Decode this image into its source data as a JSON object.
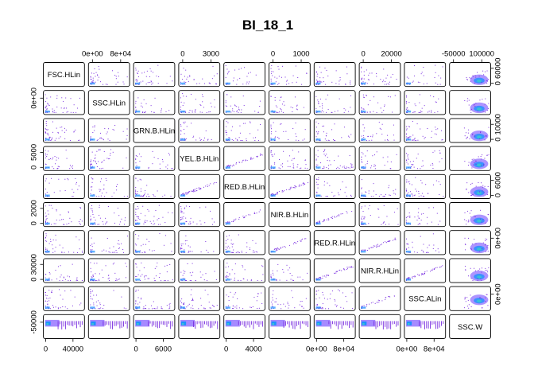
{
  "chart_data": {
    "type": "scatter",
    "subtype": "scatterplot-matrix",
    "title": "BI_18_1",
    "variables": [
      "FSC.HLin",
      "SSC.HLin",
      "GRN.B.HLin",
      "YEL.B.HLin",
      "RED.B.HLin",
      "NIR.B.HLin",
      "RED.R.HLin",
      "NIR.R.HLin",
      "SSC.ALin",
      "SSC.W"
    ],
    "top_axis": [
      {
        "column": 2,
        "ticks": [
          "0e+00",
          "8e+04"
        ]
      },
      {
        "column": 4,
        "ticks": [
          "0",
          "3000"
        ]
      },
      {
        "column": 6,
        "ticks": [
          "0",
          "1000"
        ]
      },
      {
        "column": 8,
        "ticks": [
          "0",
          "20000"
        ]
      },
      {
        "column": 10,
        "ticks": [
          "-50000",
          "100000"
        ]
      }
    ],
    "bottom_axis": [
      {
        "column": 1,
        "ticks": [
          "0",
          "40000"
        ]
      },
      {
        "column": 3,
        "ticks": [
          "0",
          "6000"
        ]
      },
      {
        "column": 5,
        "ticks": [
          "0",
          "4000"
        ]
      },
      {
        "column": 7,
        "ticks": [
          "0e+00",
          "8e+04"
        ]
      },
      {
        "column": 9,
        "ticks": [
          "0e+00",
          "8e+04"
        ]
      }
    ],
    "left_axis": [
      {
        "row": 2,
        "ticks": [
          "0e+00"
        ]
      },
      {
        "row": 4,
        "ticks": [
          "0",
          "5000"
        ]
      },
      {
        "row": 6,
        "ticks": [
          "0",
          "2000"
        ]
      },
      {
        "row": 8,
        "ticks": [
          "0",
          "30000"
        ]
      },
      {
        "row": 10,
        "ticks": [
          "-50000"
        ]
      }
    ],
    "right_axis": [
      {
        "row": 1,
        "ticks": [
          "0",
          "60000"
        ]
      },
      {
        "row": 3,
        "ticks": [
          "0",
          "10000"
        ]
      },
      {
        "row": 5,
        "ticks": [
          "0",
          "6000"
        ]
      },
      {
        "row": 7,
        "ticks": [
          "0e+00"
        ]
      },
      {
        "row": 9,
        "ticks": [
          "0e+00"
        ]
      }
    ],
    "colors": {
      "points": "#7a2fe0",
      "density_high": "#1e90ff",
      "density_core": "#37c3d3",
      "density_mid": "#6a3cff"
    }
  }
}
